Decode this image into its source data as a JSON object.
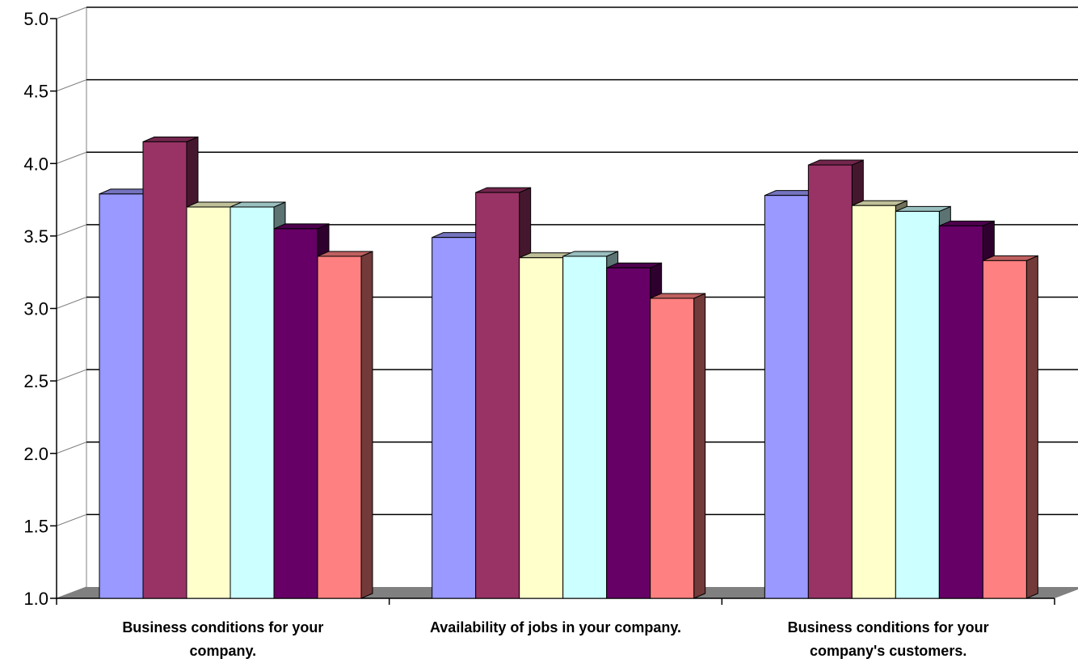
{
  "chart_data": {
    "type": "bar",
    "title": "",
    "xlabel": "",
    "ylabel": "",
    "ylim": [
      1.0,
      5.0
    ],
    "yticks": [
      "1.0",
      "1.5",
      "2.0",
      "2.5",
      "3.0",
      "3.5",
      "4.0",
      "4.5",
      "5.0"
    ],
    "grid": true,
    "legend": "none",
    "categories": [
      [
        "Business conditions for your",
        "company."
      ],
      [
        "Availability of jobs in your company."
      ],
      [
        "Business conditions for your",
        "company's customers."
      ]
    ],
    "series": [
      {
        "color": "#9999FF",
        "values": [
          3.79,
          3.49,
          3.78
        ]
      },
      {
        "color": "#993366",
        "values": [
          4.15,
          3.8,
          3.99
        ]
      },
      {
        "color": "#FFFFCC",
        "values": [
          3.7,
          3.35,
          3.71
        ]
      },
      {
        "color": "#CCFFFF",
        "values": [
          3.7,
          3.36,
          3.67
        ]
      },
      {
        "color": "#660066",
        "values": [
          3.55,
          3.28,
          3.57
        ]
      },
      {
        "color": "#FF8080",
        "values": [
          3.36,
          3.07,
          3.33
        ]
      }
    ]
  }
}
